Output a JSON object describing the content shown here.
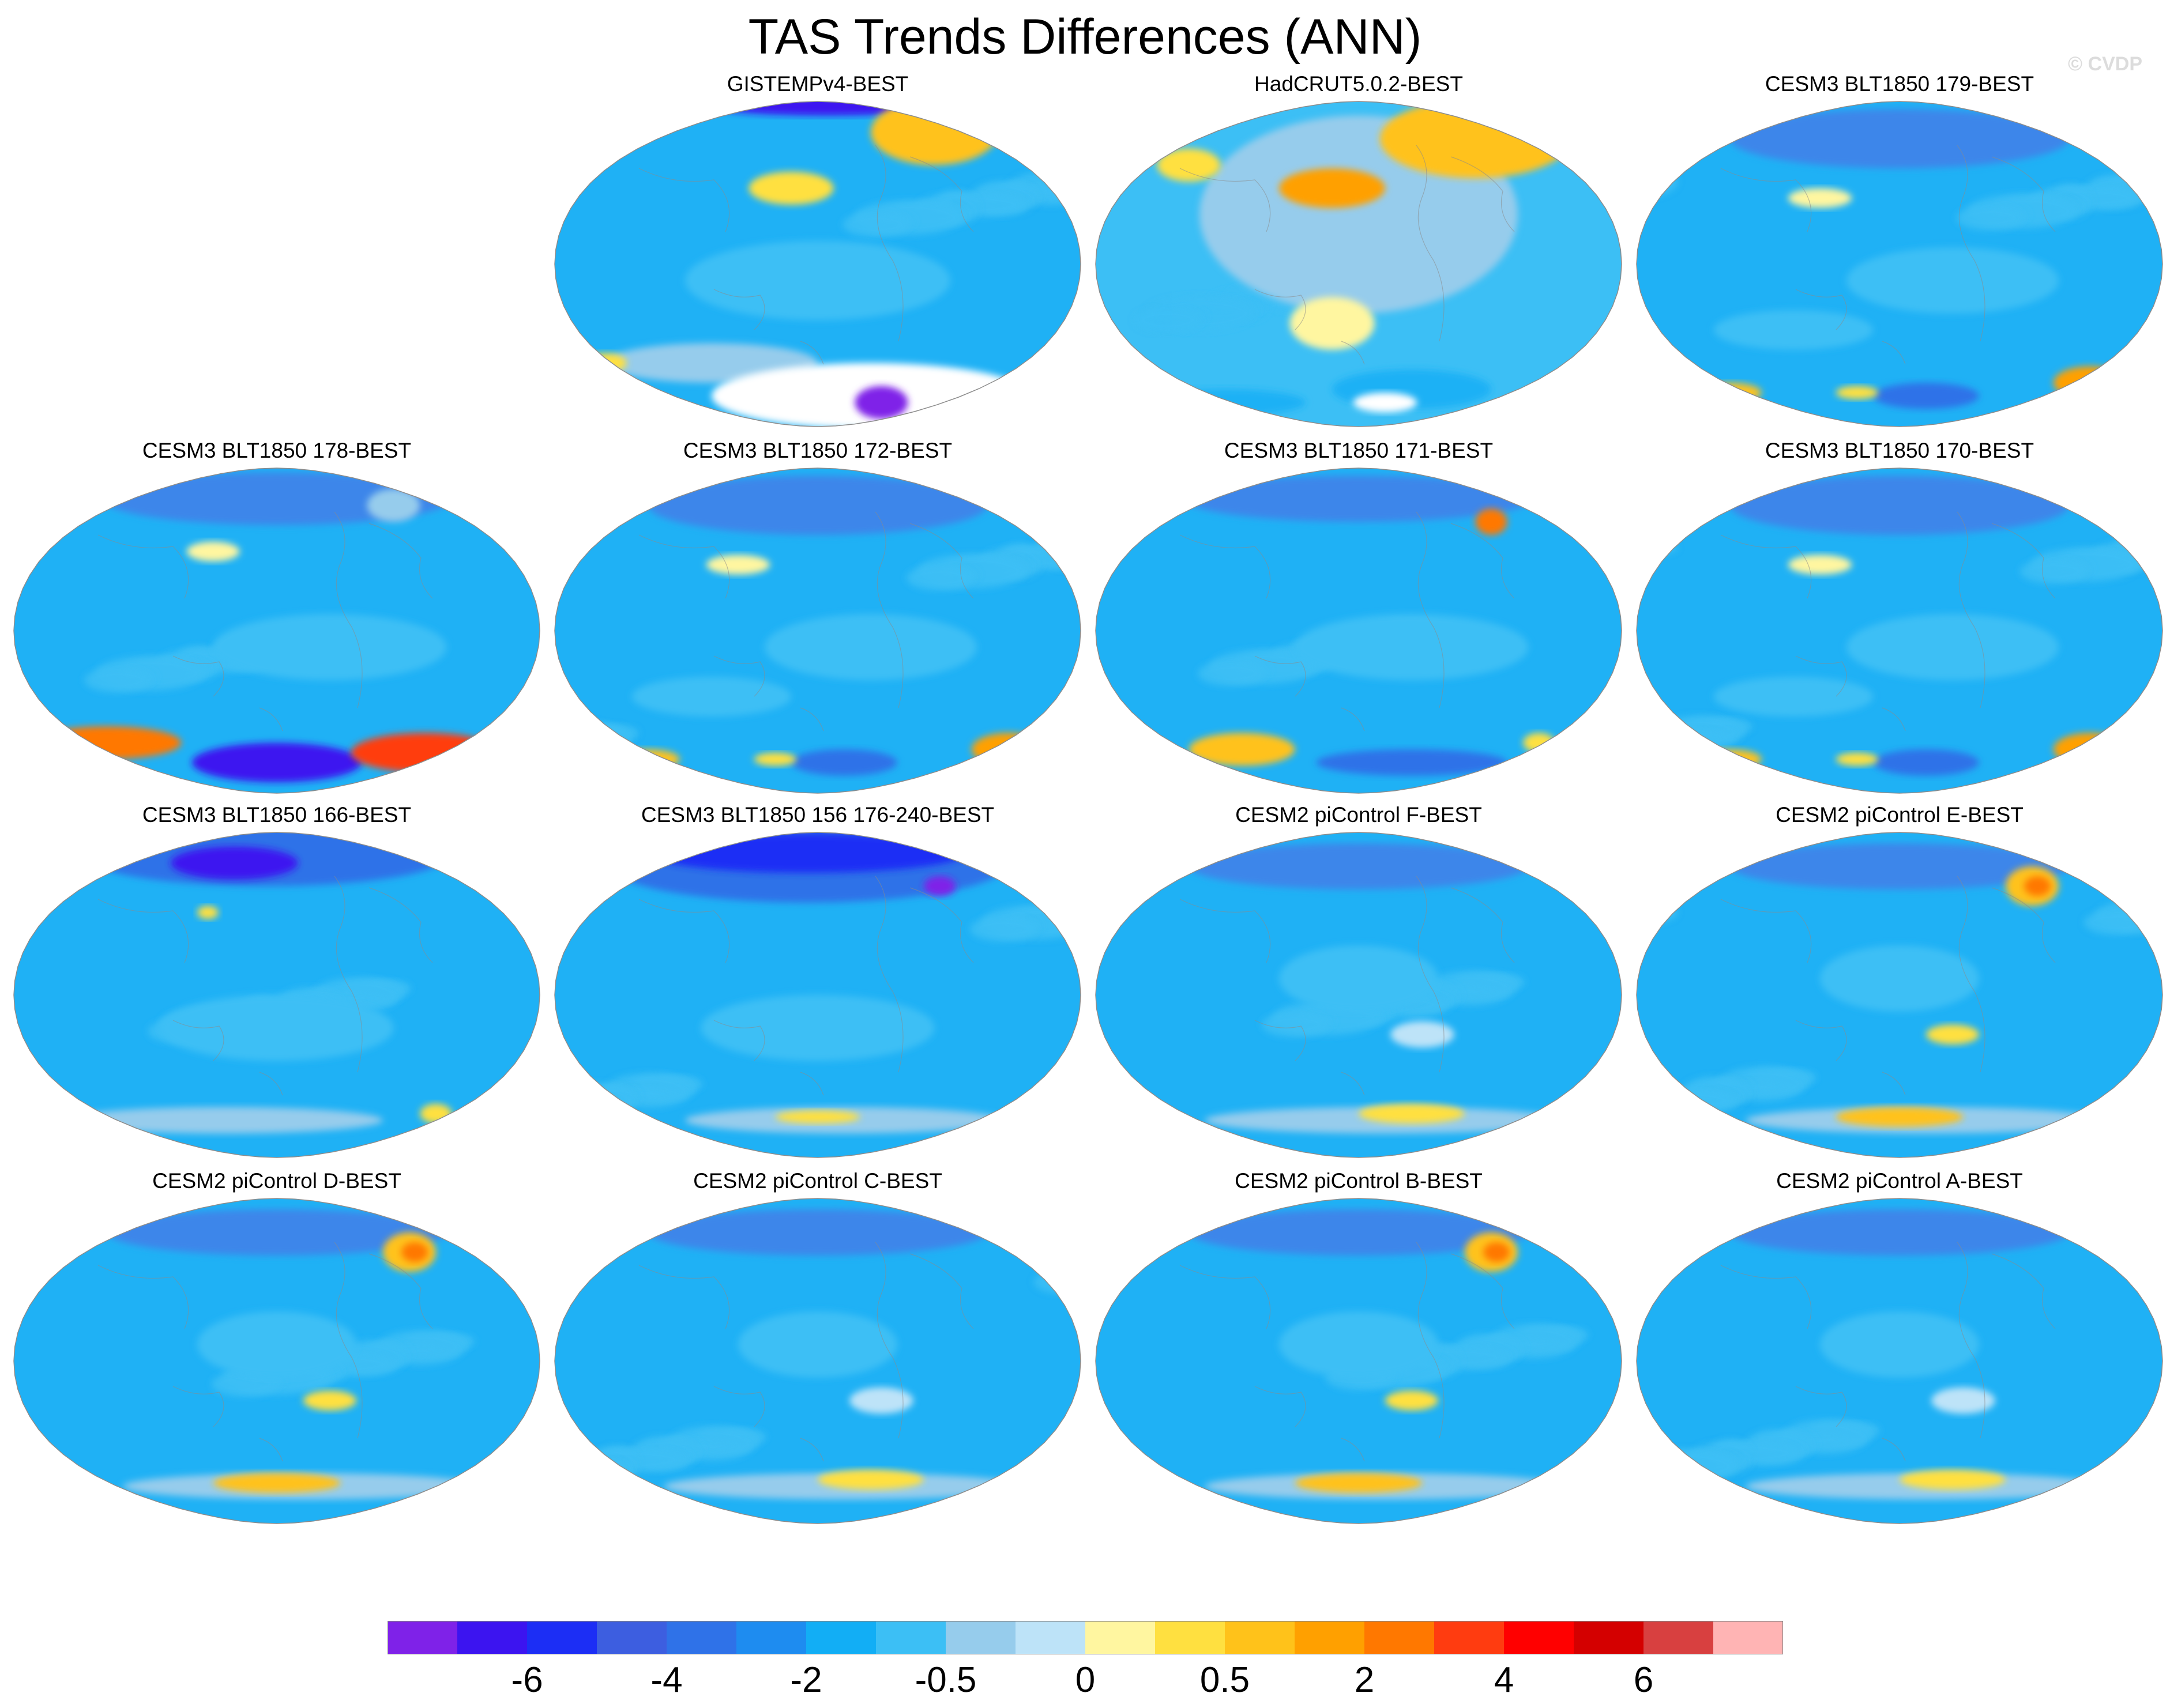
{
  "title": "TAS Trends Differences (ANN)",
  "copyright": "© CVDP",
  "projection": "Robinson",
  "palette": {
    "ocean_base": "#1fb1f5",
    "land_outline": "#8a8a8a",
    "missing": "#ffffff"
  },
  "panels": [
    {
      "title": "GISTEMPv4-BEST",
      "row": 0,
      "col": 1,
      "style": "gistemp"
    },
    {
      "title": "HadCRUT5.0.2-BEST",
      "row": 0,
      "col": 2,
      "style": "hadcrut"
    },
    {
      "title": "CESM3 BLT1850 179-BEST",
      "row": 0,
      "col": 3,
      "style": "cesm3a"
    },
    {
      "title": "CESM3 BLT1850 178-BEST",
      "row": 1,
      "col": 0,
      "style": "cesm3strong"
    },
    {
      "title": "CESM3 BLT1850 172-BEST",
      "row": 1,
      "col": 1,
      "style": "cesm3a"
    },
    {
      "title": "CESM3 BLT1850 171-BEST",
      "row": 1,
      "col": 2,
      "style": "cesm3b"
    },
    {
      "title": "CESM3 BLT1850 170-BEST",
      "row": 1,
      "col": 3,
      "style": "cesm3a"
    },
    {
      "title": "CESM3 BLT1850 166-BEST",
      "row": 2,
      "col": 0,
      "style": "cesm3cold"
    },
    {
      "title": "CESM3 BLT1850 156 176-240-BEST",
      "row": 2,
      "col": 1,
      "style": "cesm3verycold"
    },
    {
      "title": "CESM2 piControl F-BEST",
      "row": 2,
      "col": 2,
      "style": "cesm2"
    },
    {
      "title": "CESM2 piControl E-BEST",
      "row": 2,
      "col": 3,
      "style": "cesm2hot"
    },
    {
      "title": "CESM2 piControl D-BEST",
      "row": 3,
      "col": 0,
      "style": "cesm2hot"
    },
    {
      "title": "CESM2 piControl C-BEST",
      "row": 3,
      "col": 1,
      "style": "cesm2"
    },
    {
      "title": "CESM2 piControl B-BEST",
      "row": 3,
      "col": 2,
      "style": "cesm2hot"
    },
    {
      "title": "CESM2 piControl A-BEST",
      "row": 3,
      "col": 3,
      "style": "cesm2"
    }
  ],
  "colorbar": {
    "colors": [
      "#7f22e8",
      "#3c14f0",
      "#1c2ef5",
      "#3d5ee0",
      "#2f72e8",
      "#1e8cf0",
      "#12aef5",
      "#3cbff5",
      "#96ccec",
      "#bde3f8",
      "#fff6a0",
      "#ffe040",
      "#ffc21a",
      "#ffa000",
      "#ff7800",
      "#ff3c10",
      "#ff0000",
      "#d40000",
      "#d84040",
      "#ffb4b4"
    ],
    "labels": [
      {
        "text": "-6",
        "boundary": 2
      },
      {
        "text": "-4",
        "boundary": 4
      },
      {
        "text": "-2",
        "boundary": 6
      },
      {
        "text": "-0.5",
        "boundary": 8
      },
      {
        "text": "0",
        "boundary": 10
      },
      {
        "text": "0.5",
        "boundary": 12
      },
      {
        "text": "2",
        "boundary": 14
      },
      {
        "text": "4",
        "boundary": 16
      },
      {
        "text": "6",
        "boundary": 18
      }
    ]
  }
}
